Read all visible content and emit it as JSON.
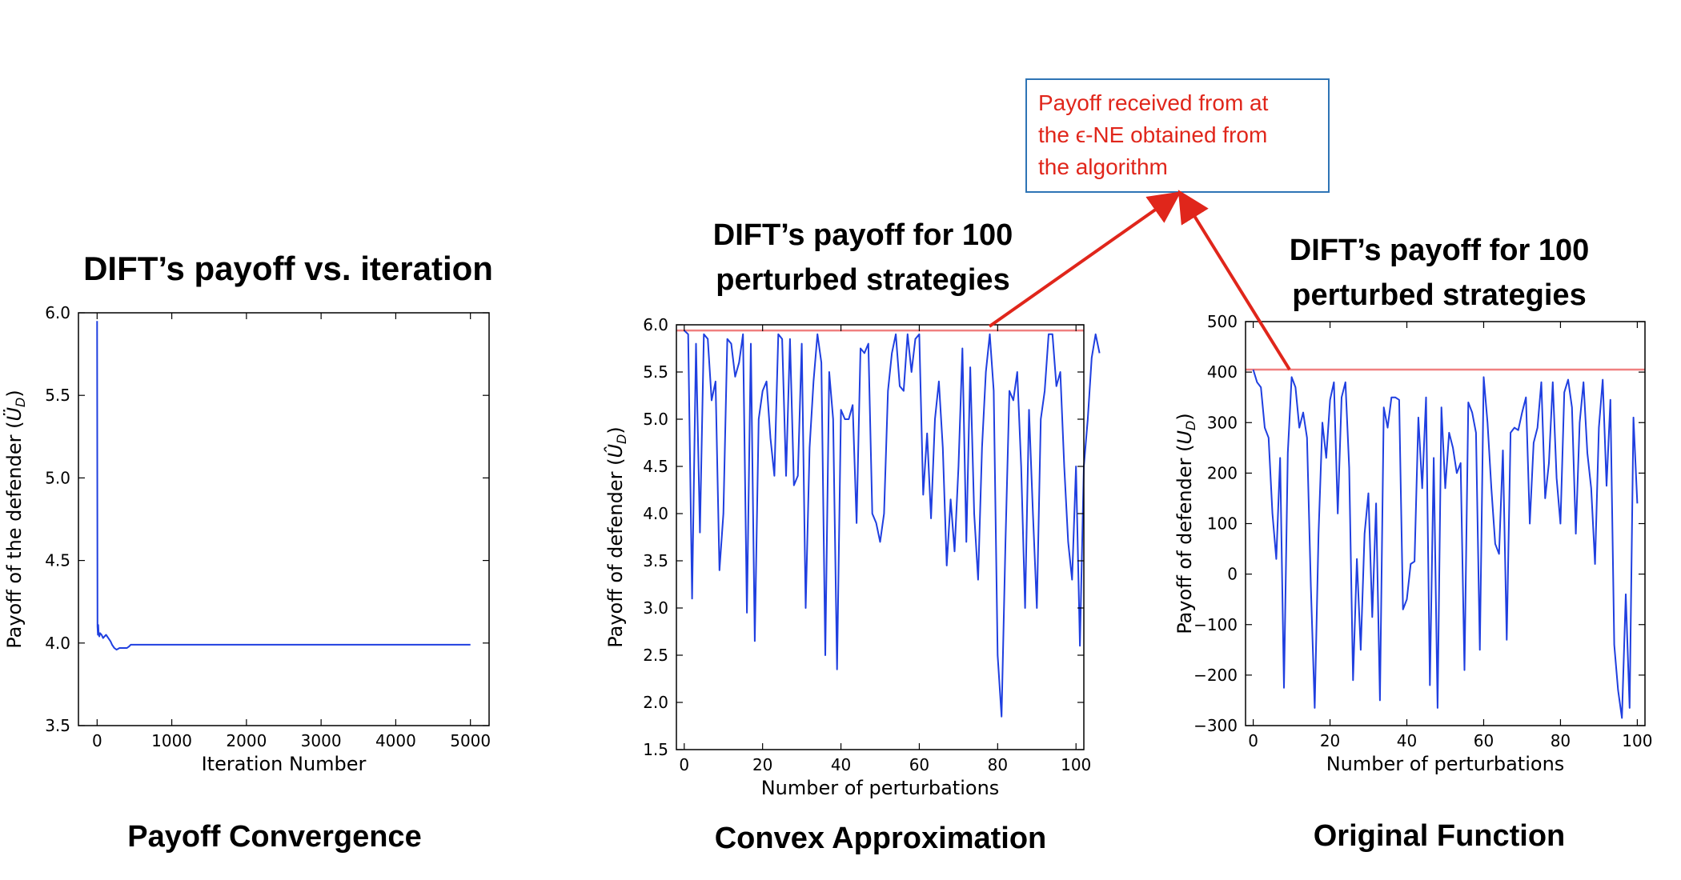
{
  "annotation": {
    "lines": [
      "Payoff received from at",
      "the ϵ-NE obtained from",
      "the algorithm"
    ],
    "text_color": "#e0261b",
    "border_color": "#2e74b5",
    "arrow_color": "#e0261b"
  },
  "chart_data": [
    {
      "type": "line",
      "title_lines": [
        "DIFT’s payoff vs. iteration"
      ],
      "caption": "Payoff Convergence",
      "xlabel": "Iteration Number",
      "ylabel": "Payoff of the defender (Ü_D)",
      "xlim": [
        -250,
        5250
      ],
      "ylim": [
        3.5,
        6.0
      ],
      "xticks": [
        0,
        1000,
        2000,
        3000,
        4000,
        5000
      ],
      "yticks": [
        "3.5",
        "4.0",
        "4.5",
        "5.0",
        "5.5",
        "6.0"
      ],
      "line_color": "#1f3fe0",
      "series": [
        {
          "x": [
            0,
            5,
            10,
            15,
            20,
            30,
            40,
            60,
            80,
            100,
            120,
            150,
            180,
            200,
            230,
            260,
            300,
            350,
            400,
            430,
            450,
            500,
            1000,
            1500,
            2000,
            2500,
            3000,
            3500,
            4000,
            4500,
            5000
          ],
          "y": [
            5.95,
            4.1,
            4.05,
            4.11,
            4.06,
            4.04,
            4.06,
            4.05,
            4.03,
            4.04,
            4.05,
            4.03,
            4.01,
            3.99,
            3.97,
            3.96,
            3.97,
            3.97,
            3.97,
            3.98,
            3.99,
            3.99,
            3.99,
            3.99,
            3.99,
            3.99,
            3.99,
            3.99,
            3.99,
            3.99,
            3.99
          ]
        }
      ]
    },
    {
      "type": "line",
      "title_lines": [
        "DIFT’s payoff for 100",
        "perturbed strategies"
      ],
      "caption": "Convex Approximation",
      "xlabel": "Number of perturbations",
      "ylabel": "Payoff of defender (Û_D)",
      "xlim": [
        -2,
        102
      ],
      "ylim": [
        1.5,
        6.0
      ],
      "xticks": [
        0,
        20,
        40,
        60,
        80,
        100
      ],
      "yticks": [
        "1.5",
        "2.0",
        "2.5",
        "3.0",
        "3.5",
        "4.0",
        "4.5",
        "5.0",
        "5.5",
        "6.0"
      ],
      "line_color": "#1f3fe0",
      "ref_line": {
        "y": 5.94,
        "color": "#f08080"
      },
      "series": [
        {
          "y": [
            5.94,
            5.9,
            3.1,
            5.8,
            3.8,
            5.9,
            5.85,
            5.2,
            5.4,
            3.4,
            4.0,
            5.85,
            5.8,
            5.45,
            5.6,
            5.9,
            2.95,
            5.8,
            2.65,
            5.0,
            5.3,
            5.4,
            4.8,
            4.4,
            5.9,
            5.85,
            4.4,
            5.85,
            4.3,
            4.4,
            5.8,
            3.0,
            4.7,
            5.4,
            5.9,
            5.6,
            2.5,
            5.5,
            5.0,
            2.35,
            5.1,
            5.0,
            5.0,
            5.15,
            3.9,
            5.75,
            5.7,
            5.8,
            4.0,
            3.9,
            3.7,
            4.0,
            5.3,
            5.7,
            5.9,
            5.35,
            5.3,
            5.9,
            5.5,
            5.85,
            5.9,
            4.2,
            4.85,
            3.95,
            5.0,
            5.4,
            4.7,
            3.45,
            4.15,
            3.6,
            4.5,
            5.75,
            3.7,
            5.55,
            4.0,
            3.3,
            4.7,
            5.5,
            5.9,
            5.3,
            2.5,
            1.85,
            3.7,
            5.3,
            5.2,
            5.5,
            4.5,
            3.0,
            5.1,
            4.0,
            3.0,
            5.0,
            5.3,
            5.9,
            5.9,
            5.35,
            5.5,
            4.5,
            3.7,
            3.3,
            4.5,
            2.6,
            4.5,
            5.0,
            5.65,
            5.9,
            5.7
          ]
        }
      ]
    },
    {
      "type": "line",
      "title_lines": [
        "DIFT’s payoff for 100",
        "perturbed strategies"
      ],
      "caption": "Original Function",
      "xlabel": "Number of perturbations",
      "ylabel": "Payoff of defender (U_D)",
      "xlim": [
        -2,
        102
      ],
      "ylim": [
        -300,
        500
      ],
      "xticks": [
        0,
        20,
        40,
        60,
        80,
        100
      ],
      "yticks": [
        "−300",
        "−200",
        "−100",
        "0",
        "100",
        "200",
        "300",
        "400",
        "500"
      ],
      "line_color": "#1f3fe0",
      "ref_line": {
        "y": 405,
        "color": "#f08080"
      },
      "series": [
        {
          "y": [
            405,
            380,
            370,
            290,
            270,
            120,
            30,
            230,
            -225,
            240,
            390,
            370,
            290,
            320,
            270,
            -25,
            -265,
            80,
            300,
            230,
            345,
            380,
            120,
            350,
            380,
            210,
            -210,
            30,
            -150,
            80,
            160,
            -85,
            140,
            -250,
            330,
            290,
            350,
            350,
            345,
            -70,
            -50,
            20,
            25,
            310,
            170,
            350,
            -220,
            230,
            -265,
            330,
            170,
            280,
            250,
            200,
            220,
            -190,
            340,
            320,
            280,
            -150,
            390,
            300,
            170,
            60,
            40,
            245,
            -130,
            280,
            290,
            285,
            320,
            350,
            100,
            260,
            290,
            380,
            150,
            220,
            380,
            190,
            100,
            360,
            385,
            330,
            80,
            300,
            380,
            240,
            170,
            20,
            290,
            385,
            175,
            345,
            -140,
            -230,
            -285,
            -40,
            -265,
            310,
            140
          ]
        }
      ]
    }
  ]
}
